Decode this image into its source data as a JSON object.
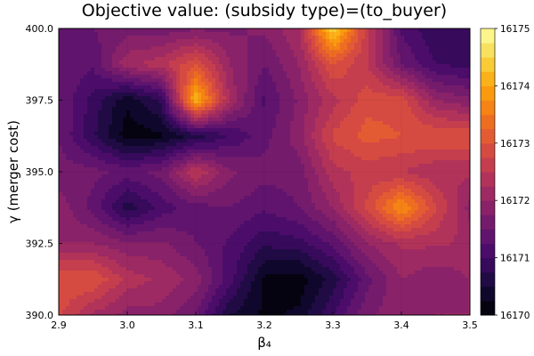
{
  "chart_data": {
    "type": "heatmap",
    "title": "Objective value: (subsidy type)=(to_buyer)",
    "xlabel": "β₄",
    "ylabel": "γ (merger cost)",
    "x": [
      2.9,
      3.0,
      3.1,
      3.2,
      3.3,
      3.4,
      3.5
    ],
    "y": [
      390.0,
      392.5,
      395.0,
      397.5,
      400.0
    ],
    "xlim": [
      2.9,
      3.5
    ],
    "ylim": [
      390.0,
      400.0
    ],
    "x_ticks": [
      "2.9",
      "3.0",
      "3.1",
      "3.2",
      "3.3",
      "3.4",
      "3.5"
    ],
    "y_ticks": [
      "390.0",
      "392.5",
      "395.0",
      "397.5",
      "400.0"
    ],
    "z_min": 16170,
    "z_max": 16175,
    "colorbar_ticks": [
      "16170",
      "16171",
      "16172",
      "16173",
      "16174",
      "16175"
    ],
    "grid": true,
    "colormap": "inferno",
    "z_grid_xs": [
      2.9,
      2.95,
      3.0,
      3.05,
      3.1,
      3.15,
      3.2,
      3.25,
      3.3,
      3.35,
      3.4,
      3.45,
      3.5
    ],
    "z_grid_ys": [
      390.0,
      391.25,
      392.5,
      393.75,
      395.0,
      396.25,
      397.5,
      398.75,
      400.0
    ],
    "z": [
      [
        16172.8,
        16172.2,
        16171.9,
        16171.9,
        16171.5,
        16170.5,
        16170.2,
        16170.3,
        16171.0,
        16171.7,
        16171.9,
        16172.0,
        16172.0
      ],
      [
        16173.0,
        16173.0,
        16172.4,
        16172.2,
        16171.9,
        16171.1,
        16170.2,
        16170.1,
        16170.6,
        16171.4,
        16172.0,
        16171.8,
        16172.0
      ],
      [
        16172.0,
        16172.0,
        16171.8,
        16171.8,
        16171.5,
        16171.2,
        16170.8,
        16170.9,
        16171.3,
        16172.0,
        16172.3,
        16172.3,
        16172.2
      ],
      [
        16171.9,
        16171.4,
        16170.6,
        16171.1,
        16171.4,
        16171.5,
        16171.3,
        16171.5,
        16172.0,
        16172.8,
        16173.8,
        16172.8,
        16171.9
      ],
      [
        16171.6,
        16171.6,
        16171.4,
        16171.6,
        16172.5,
        16171.8,
        16171.6,
        16171.6,
        16172.4,
        16172.6,
        16172.5,
        16172.3,
        16172.3
      ],
      [
        16171.5,
        16170.8,
        16170.1,
        16170.2,
        16170.6,
        16171.0,
        16171.4,
        16171.9,
        16172.8,
        16173.1,
        16173.0,
        16173.0,
        16173.0
      ],
      [
        16171.5,
        16170.9,
        16170.3,
        16170.8,
        16174.2,
        16172.2,
        16171.2,
        16171.8,
        16172.4,
        16172.9,
        16172.9,
        16172.0,
        16171.8
      ],
      [
        16171.5,
        16171.3,
        16172.2,
        16172.4,
        16173.0,
        16172.0,
        16171.5,
        16172.0,
        16173.0,
        16172.5,
        16171.5,
        16171.0,
        16170.9
      ],
      [
        16171.5,
        16171.5,
        16171.6,
        16171.6,
        16171.7,
        16171.7,
        16171.8,
        16172.2,
        16174.5,
        16172.6,
        16171.2,
        16170.8,
        16171.0
      ]
    ]
  }
}
